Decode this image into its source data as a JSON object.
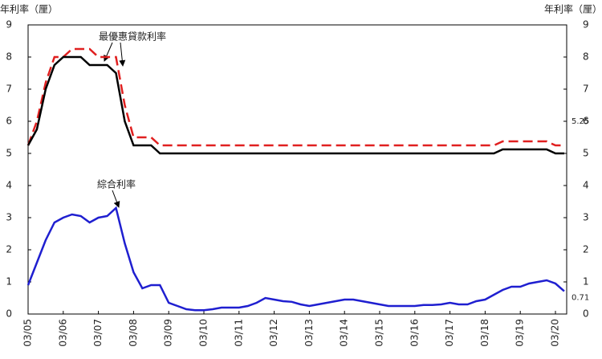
{
  "chart_data": {
    "type": "line",
    "ylabel": "年利率（厘）",
    "annotations": [
      "最優惠貸款利率",
      "綜合利率"
    ],
    "categories": [
      "03/05",
      null,
      null,
      null,
      "03/06",
      null,
      null,
      null,
      "03/07",
      null,
      null,
      null,
      "03/08",
      null,
      null,
      null,
      "03/09",
      null,
      null,
      null,
      "03/10",
      null,
      null,
      null,
      "03/11",
      null,
      null,
      null,
      "03/12",
      null,
      null,
      null,
      "03/13",
      null,
      null,
      null,
      "03/14",
      null,
      null,
      null,
      "03/15",
      null,
      null,
      null,
      "03/16",
      null,
      null,
      null,
      "03/17",
      null,
      null,
      null,
      "03/18",
      null,
      null,
      null,
      "03/19",
      null,
      null,
      null,
      "03/20",
      null
    ],
    "series": [
      {
        "color": "#e02020",
        "dashed": true,
        "values": [
          5.25,
          6.0,
          7.2,
          8.0,
          8.0,
          8.25,
          8.25,
          8.25,
          8.0,
          8.0,
          8.0,
          6.5,
          5.5,
          5.5,
          5.5,
          5.25,
          5.25,
          5.25,
          5.25,
          5.25,
          5.25,
          5.25,
          5.25,
          5.25,
          5.25,
          5.25,
          5.25,
          5.25,
          5.25,
          5.25,
          5.25,
          5.25,
          5.25,
          5.25,
          5.25,
          5.25,
          5.25,
          5.25,
          5.25,
          5.25,
          5.25,
          5.25,
          5.25,
          5.25,
          5.25,
          5.25,
          5.25,
          5.25,
          5.25,
          5.25,
          5.25,
          5.25,
          5.25,
          5.25,
          5.375,
          5.375,
          5.375,
          5.375,
          5.375,
          5.375,
          5.25,
          5.25
        ]
      },
      {
        "color": "#000000",
        "dashed": false,
        "values": [
          5.25,
          5.75,
          7.0,
          7.75,
          8.0,
          8.0,
          8.0,
          7.75,
          7.75,
          7.75,
          7.5,
          6.0,
          5.25,
          5.25,
          5.25,
          5.0,
          5.0,
          5.0,
          5.0,
          5.0,
          5.0,
          5.0,
          5.0,
          5.0,
          5.0,
          5.0,
          5.0,
          5.0,
          5.0,
          5.0,
          5.0,
          5.0,
          5.0,
          5.0,
          5.0,
          5.0,
          5.0,
          5.0,
          5.0,
          5.0,
          5.0,
          5.0,
          5.0,
          5.0,
          5.0,
          5.0,
          5.0,
          5.0,
          5.0,
          5.0,
          5.0,
          5.0,
          5.0,
          5.0,
          5.125,
          5.125,
          5.125,
          5.125,
          5.125,
          5.125,
          5.0,
          5.0
        ]
      },
      {
        "color": "#1f1fd0",
        "dashed": false,
        "values": [
          0.9,
          1.6,
          2.3,
          2.85,
          3.0,
          3.1,
          3.05,
          2.85,
          3.0,
          3.05,
          3.3,
          2.2,
          1.3,
          0.8,
          0.9,
          0.9,
          0.35,
          0.25,
          0.15,
          0.12,
          0.12,
          0.15,
          0.2,
          0.2,
          0.2,
          0.25,
          0.35,
          0.5,
          0.45,
          0.4,
          0.38,
          0.3,
          0.25,
          0.3,
          0.35,
          0.4,
          0.45,
          0.45,
          0.4,
          0.35,
          0.3,
          0.25,
          0.25,
          0.25,
          0.25,
          0.28,
          0.28,
          0.3,
          0.35,
          0.3,
          0.3,
          0.4,
          0.45,
          0.6,
          0.75,
          0.85,
          0.85,
          0.95,
          1.0,
          1.05,
          0.95,
          0.71
        ]
      }
    ],
    "ylim": [
      0,
      9
    ],
    "yticks": [
      0,
      1,
      2,
      3,
      4,
      5,
      6,
      7,
      8,
      9
    ]
  }
}
